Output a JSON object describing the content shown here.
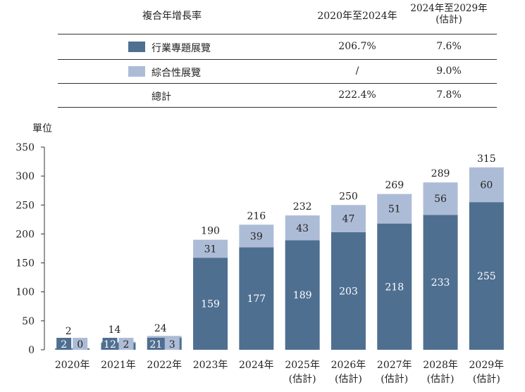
{
  "cagr_table": {
    "title": "複合年增長率",
    "period_1": "2020年至2024年",
    "period_2_line1": "2024年至2029年",
    "period_2_line2": "(估計)",
    "rows": [
      {
        "label": "行業專題展覽",
        "v1": "206.7%",
        "v2": "7.6%",
        "color": "#4f6f91"
      },
      {
        "label": "綜合性展覽",
        "v1": "/",
        "v2": "9.0%",
        "color": "#adbcd6"
      },
      {
        "label": "總計",
        "v1": "222.4%",
        "v2": "7.8%",
        "color": ""
      }
    ]
  },
  "unit_label": "單位",
  "chart_data": {
    "type": "bar",
    "stacked": true,
    "categories": [
      "2020年",
      "2021年",
      "2022年",
      "2023年",
      "2024年",
      "2025年",
      "2026年",
      "2027年",
      "2028年",
      "2029年"
    ],
    "category_sublabels": [
      "",
      "",
      "",
      "",
      "",
      "(估計)",
      "(估計)",
      "(估計)",
      "(估計)",
      "(估計)"
    ],
    "series": [
      {
        "name": "行業專題展覽",
        "color": "#4f6f91",
        "values": [
          2,
          12,
          21,
          159,
          177,
          189,
          203,
          218,
          233,
          255
        ]
      },
      {
        "name": "綜合性展覽",
        "color": "#adbcd6",
        "values": [
          0,
          2,
          3,
          31,
          39,
          43,
          47,
          51,
          56,
          60
        ]
      }
    ],
    "totals": [
      2,
      14,
      24,
      190,
      216,
      232,
      250,
      269,
      289,
      315
    ],
    "ylim": [
      0,
      350
    ],
    "yticks": [
      0,
      50,
      100,
      150,
      200,
      250,
      300,
      350
    ],
    "ylabel": "單位"
  }
}
